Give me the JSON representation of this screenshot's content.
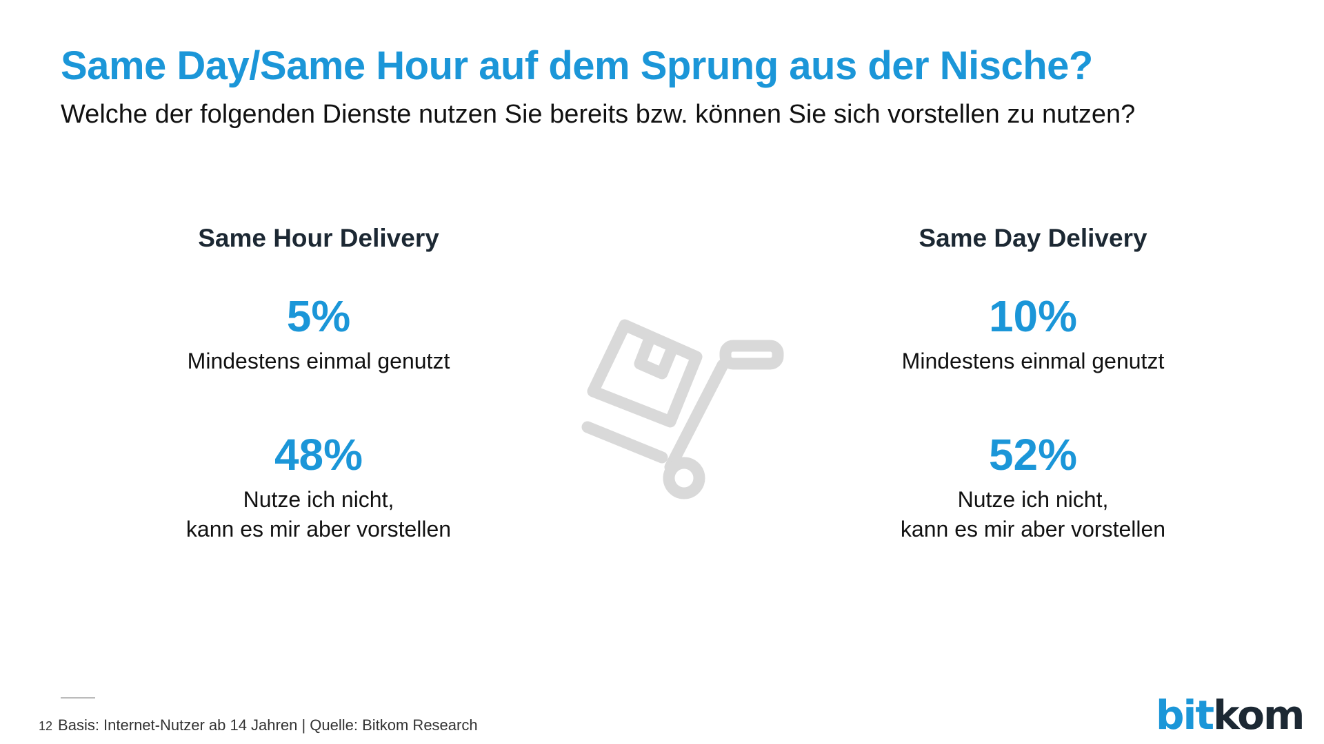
{
  "header": {
    "title": "Same Day/Same Hour auf dem Sprung aus der Nische?",
    "subtitle": "Welche der folgenden Dienste nutzen Sie bereits bzw. können Sie sich vorstellen zu nutzen?"
  },
  "left": {
    "title": "Same Hour Delivery",
    "stat1": {
      "value": "5%",
      "label": "Mindestens einmal genutzt"
    },
    "stat2": {
      "value": "48%",
      "label_line1": "Nutze ich nicht,",
      "label_line2": "kann es mir aber vorstellen"
    }
  },
  "right": {
    "title": "Same Day Delivery",
    "stat1": {
      "value": "10%",
      "label": "Mindestens einmal genutzt"
    },
    "stat2": {
      "value": "52%",
      "label_line1": "Nutze ich nicht,",
      "label_line2": "kann es mir aber vorstellen"
    }
  },
  "center_icon": "hand-truck-with-box-icon",
  "footer": {
    "page_number": "12",
    "source": "Basis: Internet-Nutzer ab 14 Jahren | Quelle: Bitkom Research"
  },
  "logo": {
    "part1": "bit",
    "part2": "kom"
  },
  "colors": {
    "accent": "#1b96d8",
    "dark": "#1c2833",
    "icon": "#d9d9d9"
  }
}
